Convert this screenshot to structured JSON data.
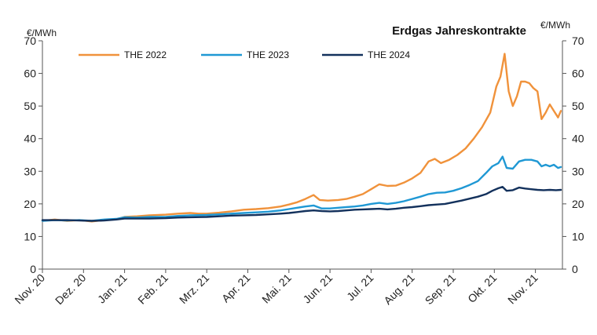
{
  "chart_data": {
    "type": "line",
    "title": "Erdgas Jahreskontrakte",
    "ylabel_left": "€/MWh",
    "ylabel_right": "€/MWh",
    "ylim": [
      0,
      70
    ],
    "yticks": [
      0,
      10,
      20,
      30,
      40,
      50,
      60,
      70
    ],
    "xlim": [
      0,
      12.25
    ],
    "x_tick_labels": [
      "Nov. 20",
      "Dez. 20",
      "Jan. 21",
      "Feb. 21",
      "Mrz. 21",
      "Apr. 21",
      "Mai. 21",
      "Jun. 21",
      "Jul. 21",
      "Aug. 21",
      "Sep. 21",
      "Okt. 21",
      "Nov. 21"
    ],
    "x_unit": "months since Nov. 20",
    "legend_position": "top-left",
    "grid": false,
    "series": [
      {
        "name": "THE 2022",
        "color": "#f0923b",
        "points": [
          [
            0,
            14.8
          ],
          [
            0.3,
            15.2
          ],
          [
            0.6,
            14.8
          ],
          [
            0.9,
            15.0
          ],
          [
            1.2,
            14.6
          ],
          [
            1.5,
            15.0
          ],
          [
            1.8,
            15.3
          ],
          [
            2.0,
            16.0
          ],
          [
            2.3,
            16.2
          ],
          [
            2.6,
            16.5
          ],
          [
            3.0,
            16.7
          ],
          [
            3.3,
            17.0
          ],
          [
            3.6,
            17.2
          ],
          [
            3.8,
            17.0
          ],
          [
            4.0,
            17.0
          ],
          [
            4.3,
            17.3
          ],
          [
            4.6,
            17.7
          ],
          [
            4.9,
            18.2
          ],
          [
            5.2,
            18.4
          ],
          [
            5.5,
            18.7
          ],
          [
            5.8,
            19.2
          ],
          [
            6.0,
            19.8
          ],
          [
            6.2,
            20.5
          ],
          [
            6.4,
            21.5
          ],
          [
            6.6,
            22.7
          ],
          [
            6.75,
            21.2
          ],
          [
            6.95,
            21.0
          ],
          [
            7.2,
            21.2
          ],
          [
            7.4,
            21.5
          ],
          [
            7.6,
            22.2
          ],
          [
            7.8,
            23.0
          ],
          [
            8.0,
            24.5
          ],
          [
            8.2,
            26.0
          ],
          [
            8.4,
            25.5
          ],
          [
            8.6,
            25.6
          ],
          [
            8.8,
            26.5
          ],
          [
            9.0,
            27.8
          ],
          [
            9.2,
            29.5
          ],
          [
            9.4,
            33.0
          ],
          [
            9.55,
            33.8
          ],
          [
            9.7,
            32.5
          ],
          [
            9.9,
            33.5
          ],
          [
            10.1,
            35.0
          ],
          [
            10.3,
            37.0
          ],
          [
            10.5,
            40.0
          ],
          [
            10.7,
            43.5
          ],
          [
            10.9,
            48.0
          ],
          [
            11.05,
            56.0
          ],
          [
            11.15,
            59.0
          ],
          [
            11.25,
            66.0
          ],
          [
            11.35,
            54.5
          ],
          [
            11.45,
            50.0
          ],
          [
            11.55,
            53.0
          ],
          [
            11.65,
            57.5
          ],
          [
            11.75,
            57.5
          ],
          [
            11.85,
            57.0
          ],
          [
            11.95,
            55.5
          ],
          [
            12.05,
            54.5
          ],
          [
            12.15,
            46.0
          ],
          [
            12.25,
            48.0
          ],
          [
            12.35,
            50.5
          ],
          [
            12.45,
            48.5
          ],
          [
            12.55,
            46.5
          ],
          [
            12.62,
            48.5
          ]
        ]
      },
      {
        "name": "THE 2023",
        "color": "#1f98d4",
        "points": [
          [
            0,
            14.8
          ],
          [
            0.3,
            15.0
          ],
          [
            0.6,
            14.9
          ],
          [
            0.9,
            15.0
          ],
          [
            1.2,
            14.8
          ],
          [
            1.5,
            15.2
          ],
          [
            1.8,
            15.4
          ],
          [
            2.0,
            15.9
          ],
          [
            2.3,
            15.8
          ],
          [
            2.6,
            16.0
          ],
          [
            3.0,
            16.0
          ],
          [
            3.3,
            16.3
          ],
          [
            3.6,
            16.5
          ],
          [
            4.0,
            16.6
          ],
          [
            4.3,
            16.8
          ],
          [
            4.6,
            17.0
          ],
          [
            4.9,
            17.2
          ],
          [
            5.2,
            17.4
          ],
          [
            5.5,
            17.6
          ],
          [
            5.8,
            18.0
          ],
          [
            6.0,
            18.4
          ],
          [
            6.2,
            18.8
          ],
          [
            6.4,
            19.2
          ],
          [
            6.6,
            19.5
          ],
          [
            6.8,
            18.6
          ],
          [
            7.0,
            18.6
          ],
          [
            7.2,
            18.8
          ],
          [
            7.4,
            19.0
          ],
          [
            7.6,
            19.2
          ],
          [
            7.8,
            19.5
          ],
          [
            8.0,
            20.0
          ],
          [
            8.2,
            20.3
          ],
          [
            8.4,
            20.0
          ],
          [
            8.6,
            20.3
          ],
          [
            8.8,
            20.8
          ],
          [
            9.0,
            21.5
          ],
          [
            9.2,
            22.2
          ],
          [
            9.4,
            23.0
          ],
          [
            9.6,
            23.4
          ],
          [
            9.8,
            23.5
          ],
          [
            10.0,
            24.0
          ],
          [
            10.2,
            24.8
          ],
          [
            10.4,
            25.8
          ],
          [
            10.6,
            27.0
          ],
          [
            10.8,
            29.5
          ],
          [
            10.95,
            31.5
          ],
          [
            11.1,
            32.5
          ],
          [
            11.2,
            34.5
          ],
          [
            11.3,
            31.0
          ],
          [
            11.45,
            30.8
          ],
          [
            11.6,
            33.0
          ],
          [
            11.75,
            33.5
          ],
          [
            11.9,
            33.5
          ],
          [
            12.05,
            33.0
          ],
          [
            12.15,
            31.5
          ],
          [
            12.25,
            32.0
          ],
          [
            12.35,
            31.5
          ],
          [
            12.45,
            32.0
          ],
          [
            12.55,
            31.0
          ],
          [
            12.62,
            31.3
          ]
        ]
      },
      {
        "name": "THE 2024",
        "color": "#13315c",
        "points": [
          [
            0,
            15.0
          ],
          [
            0.3,
            15.0
          ],
          [
            0.6,
            15.0
          ],
          [
            0.9,
            14.9
          ],
          [
            1.2,
            14.8
          ],
          [
            1.5,
            14.9
          ],
          [
            1.8,
            15.2
          ],
          [
            2.0,
            15.5
          ],
          [
            2.3,
            15.5
          ],
          [
            2.6,
            15.5
          ],
          [
            3.0,
            15.6
          ],
          [
            3.3,
            15.8
          ],
          [
            3.6,
            15.9
          ],
          [
            4.0,
            16.0
          ],
          [
            4.3,
            16.2
          ],
          [
            4.6,
            16.4
          ],
          [
            4.9,
            16.5
          ],
          [
            5.2,
            16.6
          ],
          [
            5.5,
            16.8
          ],
          [
            5.8,
            17.0
          ],
          [
            6.0,
            17.2
          ],
          [
            6.2,
            17.5
          ],
          [
            6.4,
            17.8
          ],
          [
            6.6,
            18.0
          ],
          [
            6.8,
            17.8
          ],
          [
            7.0,
            17.7
          ],
          [
            7.2,
            17.8
          ],
          [
            7.4,
            18.0
          ],
          [
            7.6,
            18.2
          ],
          [
            7.8,
            18.3
          ],
          [
            8.0,
            18.4
          ],
          [
            8.2,
            18.5
          ],
          [
            8.4,
            18.3
          ],
          [
            8.6,
            18.5
          ],
          [
            8.8,
            18.8
          ],
          [
            9.0,
            19.0
          ],
          [
            9.2,
            19.3
          ],
          [
            9.4,
            19.6
          ],
          [
            9.6,
            19.8
          ],
          [
            9.8,
            20.0
          ],
          [
            10.0,
            20.5
          ],
          [
            10.2,
            21.0
          ],
          [
            10.4,
            21.6
          ],
          [
            10.6,
            22.2
          ],
          [
            10.8,
            23.0
          ],
          [
            10.95,
            24.0
          ],
          [
            11.1,
            24.8
          ],
          [
            11.2,
            25.2
          ],
          [
            11.3,
            24.0
          ],
          [
            11.45,
            24.2
          ],
          [
            11.6,
            25.0
          ],
          [
            11.75,
            24.7
          ],
          [
            11.9,
            24.5
          ],
          [
            12.05,
            24.3
          ],
          [
            12.2,
            24.2
          ],
          [
            12.35,
            24.3
          ],
          [
            12.5,
            24.2
          ],
          [
            12.62,
            24.3
          ]
        ]
      }
    ]
  }
}
